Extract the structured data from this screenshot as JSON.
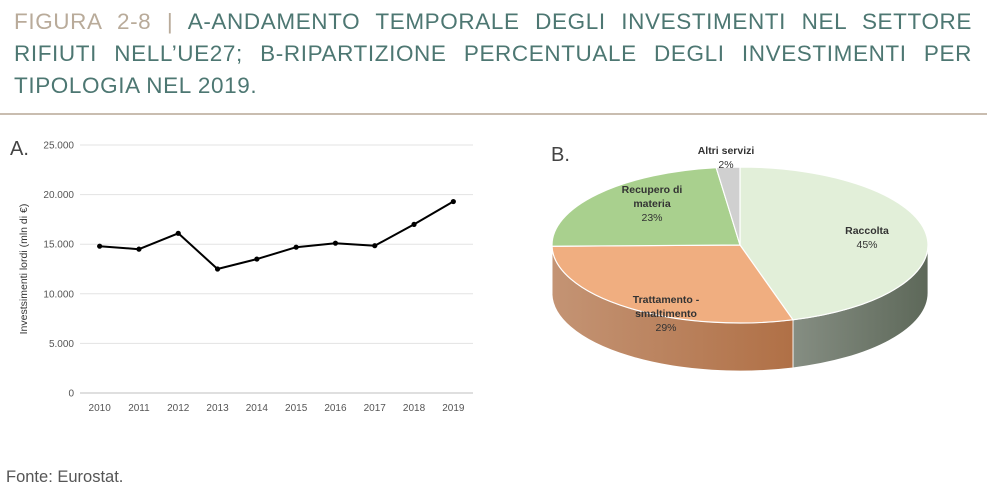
{
  "header": {
    "figure_label": "FIGURA 2-8",
    "separator": "|",
    "title": "A-ANDAMENTO TEMPORALE DEGLI INVESTIMENTI NEL SETTORE RIFIUTI NELL’UE27; B-RIPARTIZIONE PERCENTUALE DEGLI INVESTIMENTI PER TIPOLOGIA NEL 2019."
  },
  "panel_a_label": "A.",
  "panel_b_label": "B.",
  "chart_data": [
    {
      "type": "line",
      "x": [
        "2010",
        "2011",
        "2012",
        "2013",
        "2014",
        "2015",
        "2016",
        "2017",
        "2018",
        "2019"
      ],
      "series": [
        {
          "values": [
            14800,
            14500,
            16100,
            12500,
            13500,
            14700,
            15100,
            14850,
            17000,
            19300
          ]
        }
      ],
      "ylabel": "Investsimenti lordi (mln di €)",
      "ylim": [
        0,
        25000
      ],
      "yticks": [
        "0",
        "5.000",
        "10.000",
        "15.000",
        "20.000",
        "25.000"
      ],
      "ytick_values": [
        0,
        5000,
        10000,
        15000,
        20000,
        25000
      ],
      "grid": true,
      "line_color": "#000000"
    },
    {
      "type": "pie",
      "style": "3d",
      "slices": [
        {
          "name": "Raccolta",
          "value": 45,
          "label": "45%",
          "color": "#e2efd9",
          "side_color": "#5d6859"
        },
        {
          "name": "Trattamento - smaltimento",
          "value": 29,
          "label": "29%",
          "color": "#f0ae80",
          "side_color": "#b07046"
        },
        {
          "name": "Recupero di materia",
          "value": 23,
          "label": "23%",
          "color": "#a9d08e",
          "side_color": "#6e8c5a"
        },
        {
          "name": "Altri servizi",
          "value": 2,
          "label": "2%",
          "color": "#d0d0d0",
          "side_color": "#8a8a8a"
        }
      ]
    }
  ],
  "source": "Fonte: Eurostat."
}
